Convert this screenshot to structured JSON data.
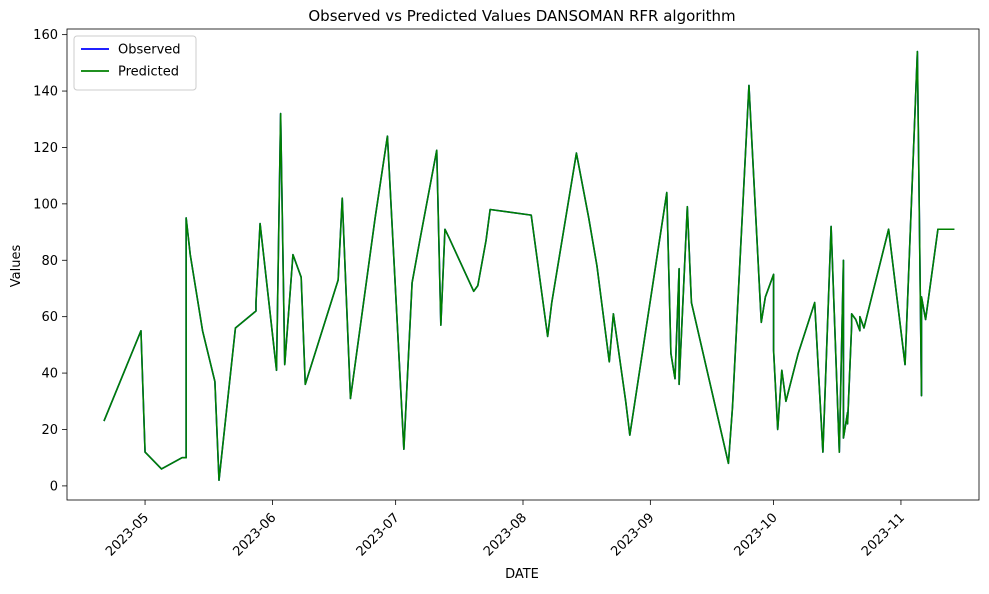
{
  "chart_data": {
    "type": "line",
    "title": "Observed vs Predicted Values DANSOMAN RFR algorithm",
    "xlabel": "DATE",
    "ylabel": "Values",
    "xlim": [
      "2023-04-12",
      "2023-11-20"
    ],
    "ylim": [
      -5,
      162
    ],
    "x_ticks": [
      "2023-05-01",
      "2023-06-01",
      "2023-07-01",
      "2023-08-01",
      "2023-09-01",
      "2023-10-01",
      "2023-11-01"
    ],
    "x_tick_labels": [
      "2023-05",
      "2023-06",
      "2023-07",
      "2023-08",
      "2023-09",
      "2023-10",
      "2023-11"
    ],
    "y_ticks": [
      0,
      20,
      40,
      60,
      80,
      100,
      120,
      140,
      160
    ],
    "y_tick_labels": [
      "0",
      "20",
      "40",
      "60",
      "80",
      "100",
      "120",
      "140",
      "160"
    ],
    "grid": false,
    "legend_position": "top-left",
    "x": [
      "2023-04-21",
      "2023-04-30",
      "2023-05-01",
      "2023-05-05",
      "2023-05-10",
      "2023-05-11",
      "2023-05-11",
      "2023-05-12",
      "2023-05-15",
      "2023-05-18",
      "2023-05-19",
      "2023-05-23",
      "2023-05-28",
      "2023-05-28",
      "2023-05-29",
      "2023-06-02",
      "2023-06-03",
      "2023-06-04",
      "2023-06-06",
      "2023-06-08",
      "2023-06-09",
      "2023-06-09",
      "2023-06-17",
      "2023-06-18",
      "2023-06-20",
      "2023-06-26",
      "2023-06-29",
      "2023-07-03",
      "2023-07-05",
      "2023-07-07",
      "2023-07-11",
      "2023-07-12",
      "2023-07-13",
      "2023-07-14",
      "2023-07-20",
      "2023-07-21",
      "2023-07-23",
      "2023-07-24",
      "2023-08-03",
      "2023-08-07",
      "2023-08-08",
      "2023-08-14",
      "2023-08-17",
      "2023-08-19",
      "2023-08-22",
      "2023-08-23",
      "2023-08-26",
      "2023-08-27",
      "2023-09-05",
      "2023-09-06",
      "2023-09-07",
      "2023-09-08",
      "2023-09-08",
      "2023-09-10",
      "2023-09-11",
      "2023-09-20",
      "2023-09-21",
      "2023-09-25",
      "2023-09-28",
      "2023-09-29",
      "2023-10-01",
      "2023-10-01",
      "2023-10-02",
      "2023-10-03",
      "2023-10-04",
      "2023-10-07",
      "2023-10-11",
      "2023-10-13",
      "2023-10-15",
      "2023-10-17",
      "2023-10-18",
      "2023-10-18",
      "2023-10-19",
      "2023-10-19",
      "2023-10-20",
      "2023-10-20",
      "2023-10-21",
      "2023-10-22",
      "2023-10-22",
      "2023-10-23",
      "2023-10-29",
      "2023-11-02",
      "2023-11-05",
      "2023-11-06",
      "2023-11-06",
      "2023-11-07",
      "2023-11-10",
      "2023-11-11",
      "2023-11-12",
      "2023-11-14"
    ],
    "series": [
      {
        "name": "Observed",
        "color": "#0000ff",
        "values": [
          23,
          55,
          12,
          6,
          10,
          10,
          95,
          82,
          55,
          37,
          2,
          56,
          62,
          65,
          93,
          41,
          132,
          43,
          82,
          74,
          36,
          36,
          73,
          102,
          31,
          95,
          124,
          13,
          72,
          88,
          119,
          57,
          91,
          88,
          69,
          71,
          87,
          98,
          96,
          53,
          65,
          118,
          95,
          78,
          44,
          61,
          30,
          18,
          104,
          47,
          38,
          77,
          36,
          99,
          65,
          8,
          28,
          142,
          58,
          67,
          75,
          48,
          20,
          41,
          30,
          47,
          65,
          12,
          92,
          12,
          80,
          17,
          26,
          22,
          57,
          61,
          59,
          55,
          60,
          56,
          91,
          43,
          154,
          32,
          67,
          59,
          91,
          91,
          91,
          91
        ]
      },
      {
        "name": "Predicted",
        "color": "#008000",
        "values": [
          23,
          55,
          12,
          6,
          10,
          10,
          95,
          82,
          55,
          37,
          2,
          56,
          62,
          65,
          93,
          41,
          132,
          43,
          82,
          74,
          36,
          36,
          73,
          102,
          31,
          95,
          124,
          13,
          72,
          88,
          119,
          57,
          91,
          88,
          69,
          71,
          87,
          98,
          96,
          53,
          65,
          118,
          95,
          78,
          44,
          61,
          30,
          18,
          104,
          47,
          38,
          77,
          36,
          99,
          65,
          8,
          28,
          142,
          58,
          67,
          75,
          48,
          20,
          41,
          30,
          47,
          65,
          12,
          92,
          12,
          80,
          17,
          26,
          22,
          57,
          61,
          59,
          55,
          60,
          56,
          91,
          43,
          154,
          32,
          67,
          59,
          91,
          91,
          91,
          91
        ]
      }
    ]
  }
}
